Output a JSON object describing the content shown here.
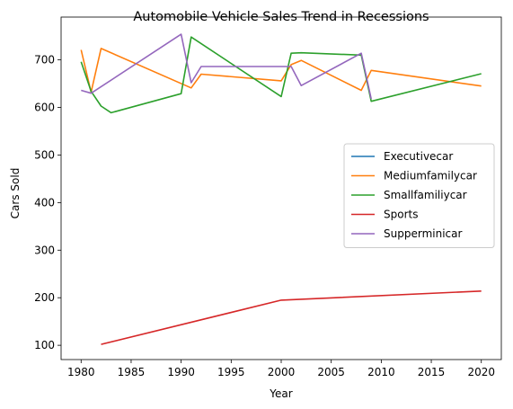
{
  "chart_data": {
    "type": "line",
    "title": "Automobile Vehicle Sales Trend in Recessions",
    "xlabel": "Year",
    "ylabel": "Cars Sold",
    "xlim": [
      1978,
      2022
    ],
    "ylim": [
      70,
      790
    ],
    "xticks": [
      "1980",
      "1985",
      "1990",
      "1995",
      "2000",
      "2005",
      "2010",
      "2015",
      "2020"
    ],
    "yticks": [
      "100",
      "200",
      "300",
      "400",
      "500",
      "600",
      "700"
    ],
    "legend_position": "center-right",
    "series": [
      {
        "name": "Executivecar",
        "color": "#1f77b4",
        "x": [],
        "y": []
      },
      {
        "name": "Mediumfamilycar",
        "color": "#ff7f0e",
        "x": [
          1980,
          1981,
          1982,
          1991,
          1992,
          2000,
          2001,
          2002,
          2008,
          2009,
          2020
        ],
        "y": [
          721,
          632,
          724,
          641,
          670,
          656,
          690,
          699,
          636,
          678,
          645
        ]
      },
      {
        "name": "Smallfamiliycar",
        "color": "#2ca02c",
        "x": [
          1980,
          1981,
          1982,
          1983,
          1990,
          1991,
          2000,
          2001,
          2002,
          2008,
          2009,
          2020
        ],
        "y": [
          696,
          634,
          603,
          589,
          629,
          748,
          623,
          714,
          715,
          710,
          613,
          671
        ]
      },
      {
        "name": "Sports",
        "color": "#d62728",
        "x": [
          1982,
          2000,
          2020
        ],
        "y": [
          102,
          195,
          214
        ]
      },
      {
        "name": "Supperminicar",
        "color": "#9467bd",
        "x": [
          1980,
          1981,
          1990,
          1991,
          1992,
          2000,
          2001,
          2002,
          2008,
          2009
        ],
        "y": [
          636,
          630,
          754,
          652,
          686,
          686,
          686,
          646,
          714,
          618
        ]
      }
    ]
  }
}
